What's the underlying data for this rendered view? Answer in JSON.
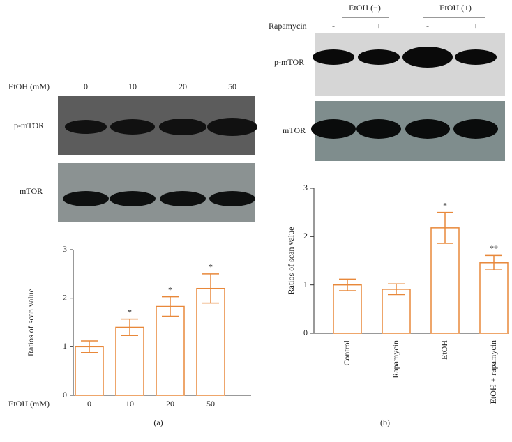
{
  "figure": {
    "panel_a": {
      "label": "(a)",
      "blot": {
        "header": "EtOH (mM)",
        "lanes": [
          "0",
          "10",
          "20",
          "50"
        ],
        "rows": [
          "p-mTOR",
          "mTOR"
        ]
      }
    },
    "panel_b": {
      "label": "(b)",
      "blot": {
        "groups": [
          "EtOH (−)",
          "EtOH (+)"
        ],
        "treatment": "Rapamycin",
        "lanes": [
          "-",
          "+",
          "-",
          "+"
        ],
        "rows": [
          "p-mTOR",
          "mTOR"
        ]
      }
    }
  },
  "chart_data": [
    {
      "type": "bar",
      "xlabel": "EtOH (mM)",
      "ylabel": "Ratios of scan value",
      "categories": [
        "0",
        "10",
        "20",
        "50"
      ],
      "values": [
        1.0,
        1.4,
        1.83,
        2.2
      ],
      "errors": [
        0.12,
        0.17,
        0.2,
        0.3
      ],
      "annotations": [
        null,
        "*",
        "*",
        "*"
      ],
      "color": "#e8883a",
      "ylim": [
        0,
        3
      ],
      "yticks": [
        0,
        1,
        2,
        3
      ]
    },
    {
      "type": "bar",
      "ylabel": "Ratios of scan value",
      "categories": [
        "Control",
        "Rapamycin",
        "EtOH",
        "EtOH + rapamycin"
      ],
      "values": [
        1.0,
        0.91,
        2.18,
        1.46
      ],
      "errors": [
        0.12,
        0.11,
        0.32,
        0.15
      ],
      "annotations": [
        null,
        null,
        "*",
        "**"
      ],
      "color": "#e8883a",
      "ylim": [
        0,
        3
      ],
      "yticks": [
        0,
        1,
        2,
        3
      ]
    }
  ]
}
